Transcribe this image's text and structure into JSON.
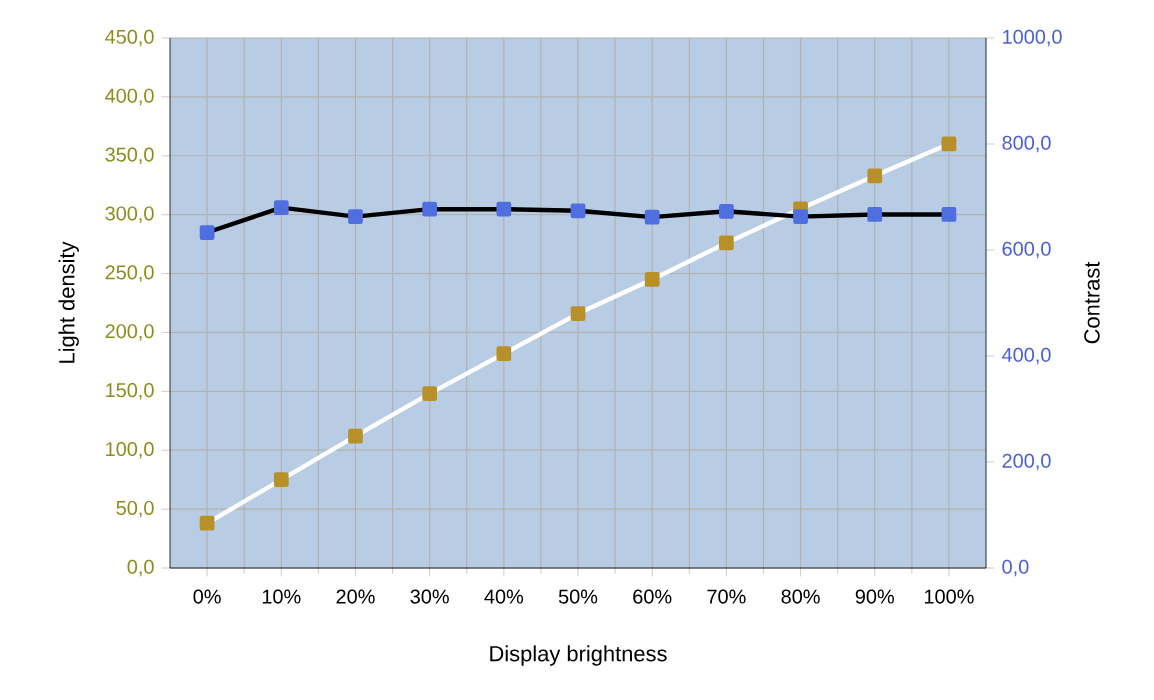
{
  "chart_data": {
    "type": "line",
    "xlabel": "Display brightness",
    "ylabel": "Light density",
    "y2label": "Contrast",
    "categories": [
      "0%",
      "10%",
      "20%",
      "30%",
      "40%",
      "50%",
      "60%",
      "70%",
      "80%",
      "90%",
      "100%"
    ],
    "series": [
      {
        "name": null,
        "color": "#b8902a",
        "values": [
          38,
          75,
          112,
          148,
          182,
          216,
          245,
          276,
          305,
          333,
          360
        ]
      },
      {
        "name": null,
        "color": "#4f6fe0",
        "axis": "y2",
        "values": [
          633,
          680,
          663,
          677,
          677,
          674,
          662,
          673,
          663,
          667,
          667
        ]
      }
    ],
    "ylim": [
      0,
      450
    ],
    "yticks": [
      {
        "value": 0,
        "label": "0,0"
      },
      {
        "value": 50,
        "label": "50,0"
      },
      {
        "value": 100,
        "label": "100,0"
      },
      {
        "value": 150,
        "label": "150,0"
      },
      {
        "value": 200,
        "label": "200,0"
      },
      {
        "value": 250,
        "label": "250,0"
      },
      {
        "value": 300,
        "label": "300,0"
      },
      {
        "value": 350,
        "label": "350,0"
      },
      {
        "value": 400,
        "label": "400,0"
      },
      {
        "value": 450,
        "label": "450,0"
      }
    ],
    "y2lim": [
      0,
      1000
    ],
    "y2ticks": [
      {
        "value": 0,
        "label": "0,0"
      },
      {
        "value": 200,
        "label": "200,0"
      },
      {
        "value": 400,
        "label": "400,0"
      },
      {
        "value": 600,
        "label": "600,0"
      },
      {
        "value": 800,
        "label": "800,0"
      },
      {
        "value": 1000,
        "label": "1000,0"
      }
    ],
    "grid": true,
    "marker": "square",
    "line_style": "solid"
  }
}
